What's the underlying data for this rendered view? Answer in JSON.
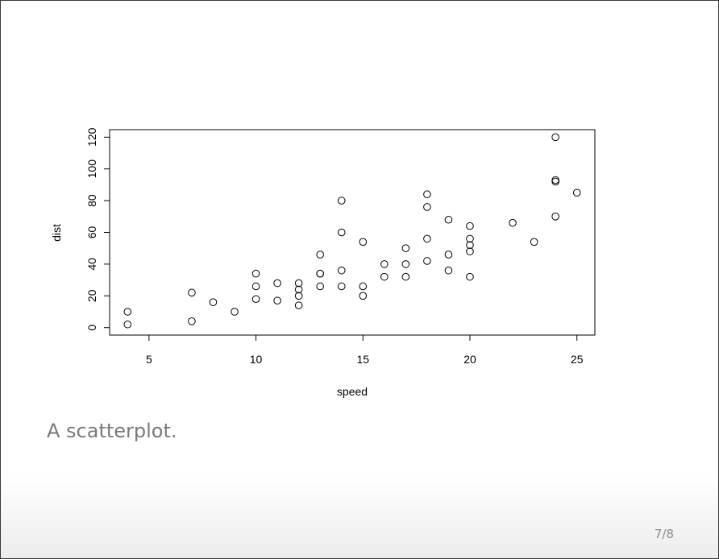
{
  "slide": {
    "caption": "A scatterplot.",
    "page_number": "7/8"
  },
  "chart_data": {
    "type": "scatter",
    "title": "",
    "xlabel": "speed",
    "ylabel": "dist",
    "xlim": [
      3.16,
      25.84
    ],
    "ylim": [
      -4.72,
      124.72
    ],
    "xticks": [
      5,
      10,
      15,
      20,
      25
    ],
    "yticks": [
      0,
      20,
      40,
      60,
      80,
      100,
      120
    ],
    "grid": false,
    "legend": "none",
    "marker": "open-circle",
    "marker_color": "#000000",
    "points": [
      {
        "x": 4,
        "y": 2
      },
      {
        "x": 4,
        "y": 10
      },
      {
        "x": 7,
        "y": 4
      },
      {
        "x": 7,
        "y": 22
      },
      {
        "x": 8,
        "y": 16
      },
      {
        "x": 9,
        "y": 10
      },
      {
        "x": 10,
        "y": 18
      },
      {
        "x": 10,
        "y": 26
      },
      {
        "x": 10,
        "y": 34
      },
      {
        "x": 11,
        "y": 17
      },
      {
        "x": 11,
        "y": 28
      },
      {
        "x": 12,
        "y": 14
      },
      {
        "x": 12,
        "y": 20
      },
      {
        "x": 12,
        "y": 24
      },
      {
        "x": 12,
        "y": 28
      },
      {
        "x": 13,
        "y": 26
      },
      {
        "x": 13,
        "y": 34
      },
      {
        "x": 13,
        "y": 34
      },
      {
        "x": 13,
        "y": 46
      },
      {
        "x": 14,
        "y": 26
      },
      {
        "x": 14,
        "y": 36
      },
      {
        "x": 14,
        "y": 60
      },
      {
        "x": 14,
        "y": 80
      },
      {
        "x": 15,
        "y": 20
      },
      {
        "x": 15,
        "y": 26
      },
      {
        "x": 15,
        "y": 54
      },
      {
        "x": 16,
        "y": 32
      },
      {
        "x": 16,
        "y": 40
      },
      {
        "x": 17,
        "y": 32
      },
      {
        "x": 17,
        "y": 40
      },
      {
        "x": 17,
        "y": 50
      },
      {
        "x": 18,
        "y": 42
      },
      {
        "x": 18,
        "y": 56
      },
      {
        "x": 18,
        "y": 76
      },
      {
        "x": 18,
        "y": 84
      },
      {
        "x": 19,
        "y": 36
      },
      {
        "x": 19,
        "y": 46
      },
      {
        "x": 19,
        "y": 68
      },
      {
        "x": 20,
        "y": 32
      },
      {
        "x": 20,
        "y": 48
      },
      {
        "x": 20,
        "y": 52
      },
      {
        "x": 20,
        "y": 56
      },
      {
        "x": 20,
        "y": 64
      },
      {
        "x": 22,
        "y": 66
      },
      {
        "x": 23,
        "y": 54
      },
      {
        "x": 24,
        "y": 70
      },
      {
        "x": 24,
        "y": 92
      },
      {
        "x": 24,
        "y": 93
      },
      {
        "x": 24,
        "y": 120
      },
      {
        "x": 25,
        "y": 85
      }
    ]
  }
}
